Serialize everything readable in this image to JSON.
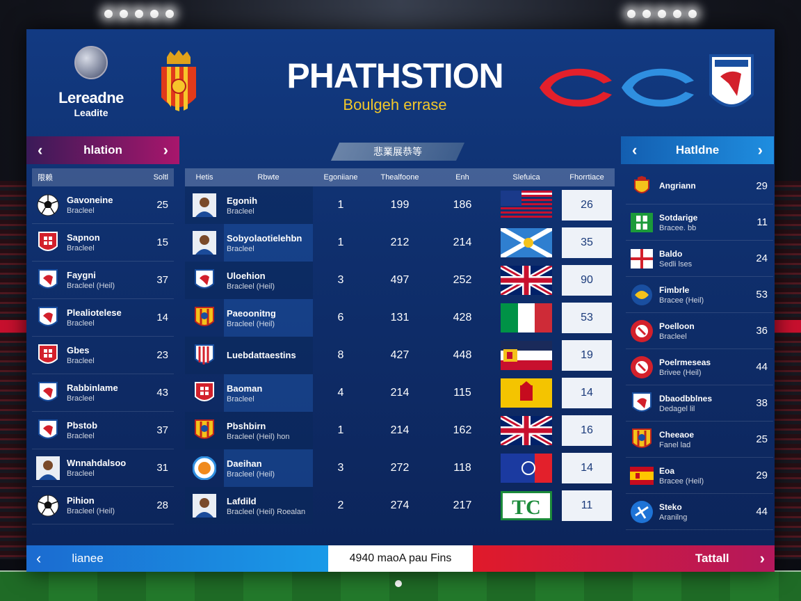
{
  "header": {
    "league_line1": "Lereadne",
    "league_line2": "Leadite",
    "title": "PHATHSTION",
    "subtitle": "Boulgeh errase"
  },
  "left_nav": {
    "label": "hlation"
  },
  "right_nav": {
    "label": "Hatldne"
  },
  "banner": {
    "label": "悲業展恭等"
  },
  "left_list": {
    "col1": "限赖",
    "col2": "Soltl",
    "rows": [
      {
        "icon": "soccer-ball-icon",
        "name": "Gavoneine",
        "sub": "Bracleel",
        "value": "25"
      },
      {
        "icon": "red-shield-crest-icon",
        "name": "Sapnon",
        "sub": "Bracleel",
        "value": "15"
      },
      {
        "icon": "white-shield-crest-icon",
        "name": "Faygni",
        "sub": "Bracleel (Heil)",
        "value": "37"
      },
      {
        "icon": "white-shield-crest-icon",
        "name": "Plealiotelese",
        "sub": "Bracleel",
        "value": "14"
      },
      {
        "icon": "red-shield-crest-icon",
        "name": "Gbes",
        "sub": "Bracleel",
        "value": "23"
      },
      {
        "icon": "white-shield-crest-icon",
        "name": "Rabbinlame",
        "sub": "Bracleel",
        "value": "43"
      },
      {
        "icon": "white-shield-crest-icon",
        "name": "Pbstob",
        "sub": "Bracleel",
        "value": "37"
      },
      {
        "icon": "player-avatar-icon",
        "name": "Wnnahdalsoo",
        "sub": "Bracleel",
        "value": "31"
      },
      {
        "icon": "soccer-ball-icon",
        "name": "Pihion",
        "sub": "Bracleel (Heil)",
        "value": "28"
      }
    ]
  },
  "center_table": {
    "headers": [
      "Hetis",
      "Rbwte",
      "Egoniiane",
      "Thealfoone",
      "Enh",
      "Slefuica",
      "Fhorrtiace"
    ],
    "rows": [
      {
        "icon": "player-avatar-icon",
        "name": "Egonih",
        "sub": "Bracleel",
        "n1": "1",
        "n2": "199",
        "n3": "186",
        "flag": "usa",
        "score": "26"
      },
      {
        "icon": "player-avatar-icon",
        "name": "Sobyolaotielehbn",
        "sub": "Bracleel",
        "n1": "1",
        "n2": "212",
        "n3": "214",
        "flag": "scotland",
        "score": "35"
      },
      {
        "icon": "white-shield-crest-icon",
        "name": "Uloehion",
        "sub": "Bracleel (Heil)",
        "n1": "3",
        "n2": "497",
        "n3": "252",
        "flag": "uk",
        "score": "90"
      },
      {
        "icon": "yellow-crest-icon",
        "name": "Paeoonitng",
        "sub": "Bracleel (Heil)",
        "n1": "6",
        "n2": "131",
        "n3": "428",
        "flag": "italy",
        "score": "53"
      },
      {
        "icon": "striped-crest-icon",
        "name": "Luebdattaestins",
        "sub": "",
        "n1": "8",
        "n2": "427",
        "n3": "448",
        "flag": "mixed",
        "score": "19"
      },
      {
        "icon": "red-shield-crest-icon",
        "name": "Baoman",
        "sub": "Bracleel",
        "n1": "4",
        "n2": "214",
        "n3": "115",
        "flag": "spain",
        "score": "14"
      },
      {
        "icon": "yellow-crest-icon",
        "name": "Pbshbirn",
        "sub": "Bracleel (Heil) hon",
        "n1": "1",
        "n2": "214",
        "n3": "162",
        "flag": "uk",
        "score": "16"
      },
      {
        "icon": "round-badge-icon",
        "name": "Daeihan",
        "sub": "Bracleel (Heil)",
        "n1": "3",
        "n2": "272",
        "n3": "118",
        "flag": "france",
        "score": "14"
      },
      {
        "icon": "player-avatar-icon",
        "name": "Lafdild",
        "sub": "Bracleel (Heil) Roealan",
        "n1": "2",
        "n2": "274",
        "n3": "217",
        "flag": "tc",
        "score": "11"
      }
    ]
  },
  "right_list": {
    "rows": [
      {
        "icon": "spain-crest-icon",
        "name": "Angriann",
        "sub": "",
        "value": "29"
      },
      {
        "icon": "green-flag-icon",
        "name": "Sotdarige",
        "sub": "Bracee. bb",
        "value": "11"
      },
      {
        "icon": "cross-flag-icon",
        "name": "Baldo",
        "sub": "Sedli lses",
        "value": "24"
      },
      {
        "icon": "blue-crest-icon",
        "name": "Fimbrle",
        "sub": "Bracee (Heil)",
        "value": "53"
      },
      {
        "icon": "red-round-crest-icon",
        "name": "Poelloon",
        "sub": "Bracleel",
        "value": "36"
      },
      {
        "icon": "red-round-crest-icon",
        "name": "Poelrmeseas",
        "sub": "Brivee (Heil)",
        "value": "44"
      },
      {
        "icon": "white-shield-crest-icon",
        "name": "Dbaodbblnes",
        "sub": "Dedagel lil",
        "value": "38"
      },
      {
        "icon": "yellow-crest-icon",
        "name": "Cheeaoe",
        "sub": "Fanel lad",
        "value": "25"
      },
      {
        "icon": "spain-flag-icon",
        "name": "Eoa",
        "sub": "Bracee (Heil)",
        "value": "29"
      },
      {
        "icon": "blue-round-crest-icon",
        "name": "Steko",
        "sub": "Aranilng",
        "value": "44"
      }
    ]
  },
  "bottom": {
    "left_label": "lianee",
    "mid_label": "4940 maoA pau Fins",
    "right_label": "Tattall"
  }
}
